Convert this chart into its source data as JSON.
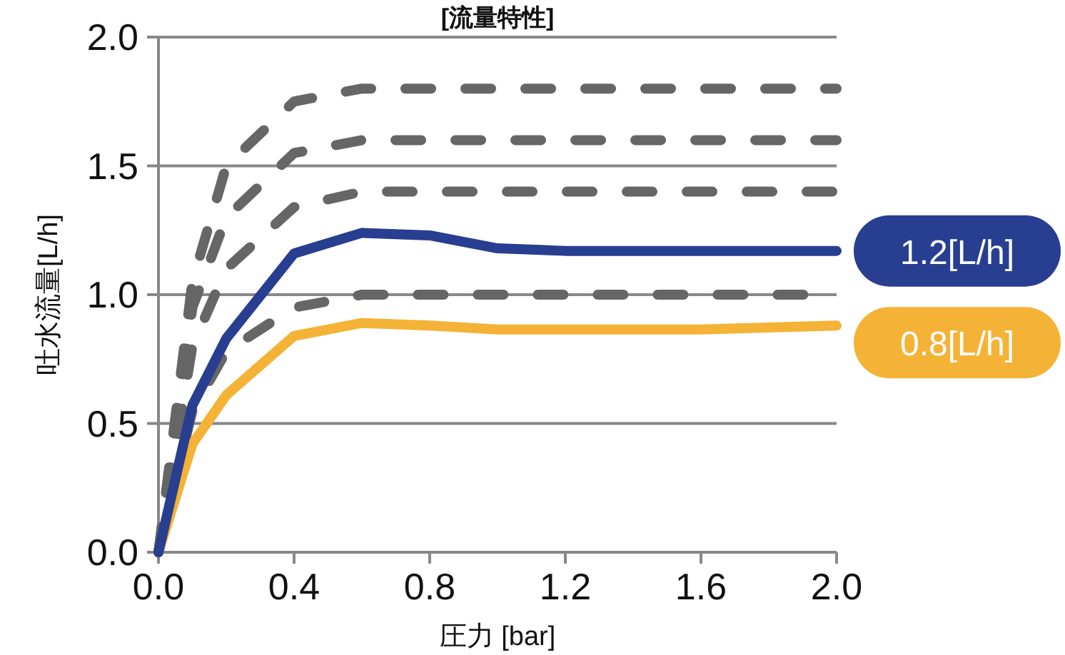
{
  "chart_data": {
    "type": "line",
    "title": "[流量特性]",
    "xlabel": "圧力 [bar]",
    "ylabel": "吐水流量[L/h]",
    "xlim": [
      0,
      2.0
    ],
    "ylim": [
      0,
      2.0
    ],
    "xticks": [
      {
        "value": 0,
        "label": "0.0"
      },
      0.4,
      0.8,
      1.2,
      1.6,
      {
        "value": 2,
        "label": "2.0"
      }
    ],
    "yticks": [
      {
        "value": 0,
        "label": "0.0"
      },
      0.5,
      {
        "value": 1,
        "label": "1.0"
      },
      1.5,
      {
        "value": 2,
        "label": "2.0"
      }
    ],
    "grid": "y",
    "legend": "right",
    "series": [
      {
        "color": "#666666",
        "line_style": "dashed",
        "x": [
          0,
          0.1,
          0.2,
          0.4,
          0.6,
          2.0
        ],
        "values": [
          0,
          1.05,
          1.5,
          1.75,
          1.8,
          1.8
        ]
      },
      {
        "color": "#666666",
        "line_style": "dashed",
        "x": [
          0,
          0.1,
          0.2,
          0.4,
          0.6,
          2.0
        ],
        "values": [
          0,
          0.95,
          1.3,
          1.55,
          1.6,
          1.6
        ]
      },
      {
        "color": "#666666",
        "line_style": "dashed",
        "x": [
          0,
          0.1,
          0.2,
          0.4,
          0.6,
          2.0
        ],
        "values": [
          0,
          0.8,
          1.1,
          1.34,
          1.4,
          1.4
        ]
      },
      {
        "color": "#666666",
        "line_style": "dashed",
        "x": [
          0,
          0.1,
          0.2,
          0.4,
          0.6,
          2.0
        ],
        "values": [
          0,
          0.55,
          0.78,
          0.95,
          1.0,
          1.0
        ]
      },
      {
        "name": "0.8[L/h]",
        "color": "#f4b336",
        "line_style": "solid",
        "x": [
          0,
          0.1,
          0.2,
          0.4,
          0.6,
          0.8,
          1.0,
          1.6,
          2.0
        ],
        "values": [
          0,
          0.42,
          0.61,
          0.84,
          0.89,
          0.88,
          0.865,
          0.865,
          0.88
        ]
      },
      {
        "name": "1.2[L/h]",
        "color": "#283e90",
        "line_style": "solid",
        "x": [
          0,
          0.1,
          0.2,
          0.4,
          0.6,
          0.8,
          1.0,
          1.2,
          1.6,
          2.0
        ],
        "values": [
          0,
          0.57,
          0.83,
          1.16,
          1.24,
          1.23,
          1.18,
          1.17,
          1.17,
          1.17
        ]
      }
    ]
  }
}
